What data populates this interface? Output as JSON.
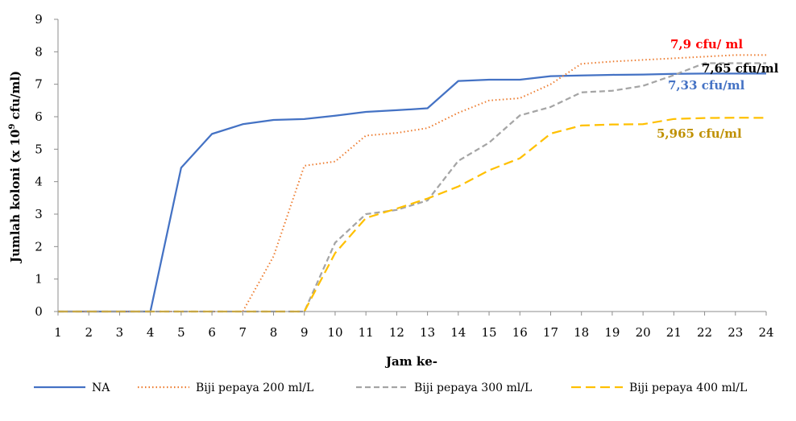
{
  "chart_data": {
    "type": "line",
    "xlabel": "Jam ke-",
    "ylabel_parts": [
      "Jumlah koloni (x 10",
      "9",
      " cfu/ml)"
    ],
    "ylabel": "Jumlah koloni (x 10^9 cfu/ml)",
    "xlim": [
      1,
      24
    ],
    "ylim": [
      0,
      9
    ],
    "x": [
      1,
      2,
      3,
      4,
      5,
      6,
      7,
      8,
      9,
      10,
      11,
      12,
      13,
      14,
      15,
      16,
      17,
      18,
      19,
      20,
      21,
      22,
      23,
      24
    ],
    "x_ticks": [
      "1",
      "2",
      "3",
      "4",
      "5",
      "6",
      "7",
      "8",
      "9",
      "10",
      "11",
      "12",
      "13",
      "14",
      "15",
      "16",
      "17",
      "18",
      "19",
      "20",
      "21",
      "22",
      "23",
      "24"
    ],
    "y_ticks": [
      "0",
      "1",
      "2",
      "3",
      "4",
      "5",
      "6",
      "7",
      "8",
      "9"
    ],
    "grid": false,
    "legend_position": "bottom",
    "series": [
      {
        "name": "NA",
        "color": "#4472C4",
        "style": "solid",
        "values": [
          0,
          0,
          0,
          0,
          4.43,
          5.47,
          5.77,
          5.9,
          5.93,
          6.03,
          6.15,
          6.2,
          6.26,
          7.1,
          7.14,
          7.14,
          7.25,
          7.27,
          7.29,
          7.3,
          7.32,
          7.33,
          7.33,
          7.33
        ]
      },
      {
        "name": "Biji pepaya 200 ml/L",
        "color": "#ED7D31",
        "style": "dotted",
        "values": [
          0,
          0,
          0,
          0,
          0,
          0,
          0,
          1.7,
          4.49,
          4.62,
          5.42,
          5.5,
          5.65,
          6.12,
          6.5,
          6.57,
          7.0,
          7.63,
          7.7,
          7.75,
          7.8,
          7.85,
          7.9,
          7.9
        ]
      },
      {
        "name": "Biji pepaya 300 ml/L",
        "color": "#A5A5A5",
        "style": "dashed",
        "values": [
          0,
          0,
          0,
          0,
          0,
          0,
          0,
          0,
          0,
          2.12,
          3.0,
          3.13,
          3.42,
          4.64,
          5.2,
          6.04,
          6.3,
          6.75,
          6.8,
          6.95,
          7.28,
          7.65,
          7.65,
          7.65
        ]
      },
      {
        "name": "Biji pepaya 400 ml/L",
        "color": "#FFC000",
        "style": "longdash",
        "values": [
          0,
          0,
          0,
          0,
          0,
          0,
          0,
          0,
          0,
          1.8,
          2.88,
          3.17,
          3.48,
          3.85,
          4.35,
          4.72,
          5.48,
          5.73,
          5.76,
          5.77,
          5.93,
          5.96,
          5.97,
          5.965
        ]
      }
    ],
    "annotations": [
      {
        "text": "7,9 cfu/ ml",
        "color": "#FF0000"
      },
      {
        "text": "7,65 cfu/ml",
        "color": "#000000"
      },
      {
        "text": "7,33 cfu/ml",
        "color": "#4472C4"
      },
      {
        "text": "5,965 cfu/ml",
        "color": "#BF9000"
      }
    ]
  }
}
